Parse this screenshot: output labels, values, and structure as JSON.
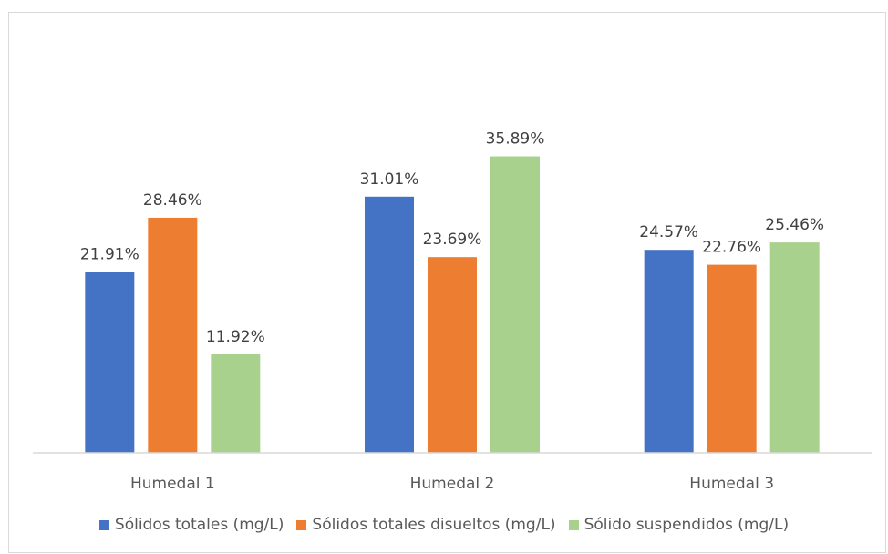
{
  "chart_data": {
    "type": "bar",
    "categories": [
      "Humedal 1",
      "Humedal 2",
      "Humedal 3"
    ],
    "series": [
      {
        "name": "Sólidos totales (mg/L)",
        "values": [
          21.91,
          31.01,
          24.57
        ],
        "labels": [
          "21.91%",
          "31.01%",
          "24.57%"
        ],
        "color": "#4472c4"
      },
      {
        "name": "Sólidos totales disueltos (mg/L)",
        "values": [
          28.46,
          23.69,
          22.76
        ],
        "labels": [
          "28.46%",
          "23.69%",
          "22.76%"
        ],
        "color": "#ed7d31"
      },
      {
        "name": "Sólido suspendidos (mg/L)",
        "values": [
          11.92,
          35.89,
          25.46
        ],
        "labels": [
          "11.92%",
          "35.89%",
          "25.46%"
        ],
        "color": "#a9d18e"
      }
    ],
    "ylim": [
      0,
      40
    ],
    "grid": false,
    "legend_position": "bottom"
  }
}
